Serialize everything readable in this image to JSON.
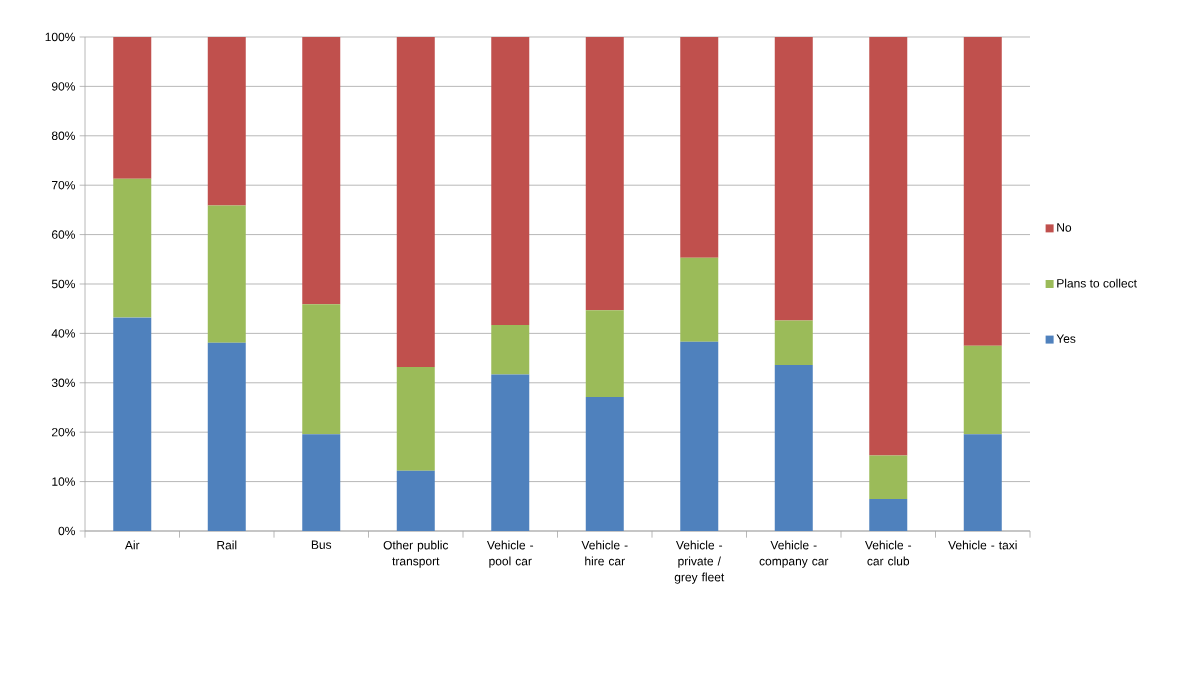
{
  "chart_data": {
    "type": "bar",
    "stacked": true,
    "categories": [
      "Air",
      "Rail",
      "Bus",
      "Other public transport",
      "Vehicle - pool car",
      "Vehicle - hire car",
      "Vehicle - private / grey fleet",
      "Vehicle - company car",
      "Vehicle - car club",
      "Vehicle - taxi"
    ],
    "series": [
      {
        "name": "Yes",
        "color": "#4f81bd",
        "values": [
          43.2,
          38.1,
          19.6,
          12.2,
          31.7,
          27.1,
          38.3,
          33.6,
          6.5,
          19.6
        ]
      },
      {
        "name": "Plans to collect",
        "color": "#9bbb59",
        "values": [
          28.1,
          27.8,
          26.3,
          21.0,
          10.0,
          17.6,
          17.0,
          9.0,
          8.8,
          17.9
        ]
      },
      {
        "name": "No",
        "color": "#c0504d",
        "values": [
          28.7,
          34.1,
          54.1,
          66.8,
          58.3,
          55.3,
          44.7,
          57.4,
          84.7,
          62.5
        ]
      }
    ],
    "ylim": [
      0,
      100
    ],
    "yticks": [
      {
        "value": 0,
        "label": "0%"
      },
      {
        "value": 10,
        "label": "10%"
      },
      {
        "value": 20,
        "label": "20%"
      },
      {
        "value": 30,
        "label": "30%"
      },
      {
        "value": 40,
        "label": "40%"
      },
      {
        "value": 50,
        "label": "50%"
      },
      {
        "value": 60,
        "label": "60%"
      },
      {
        "value": 70,
        "label": "70%"
      },
      {
        "value": 80,
        "label": "80%"
      },
      {
        "value": 90,
        "label": "90%"
      },
      {
        "value": 100,
        "label": "100%"
      }
    ],
    "grid": "y",
    "legend": "right"
  }
}
